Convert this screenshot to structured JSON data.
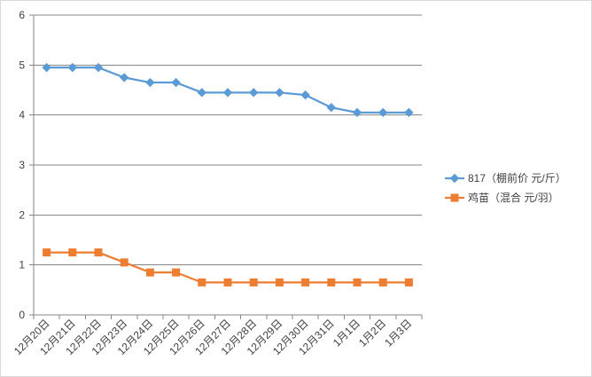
{
  "chart_data": {
    "type": "line",
    "categories": [
      "12月20日",
      "12月21日",
      "12月22日",
      "12月23日",
      "12月24日",
      "12月25日",
      "12月26日",
      "12月27日",
      "12月28日",
      "12月29日",
      "12月30日",
      "12月31日",
      "1月1日",
      "1月2日",
      "1月3日"
    ],
    "series": [
      {
        "name": "817（棚前价 元/斤）",
        "color": "#5b9bd5",
        "marker": "diamond",
        "values": [
          4.95,
          4.95,
          4.95,
          4.75,
          4.65,
          4.65,
          4.45,
          4.45,
          4.45,
          4.45,
          4.4,
          4.15,
          4.05,
          4.05,
          4.05
        ]
      },
      {
        "name": "鸡苗（混合 元/羽）",
        "color": "#ed7d31",
        "marker": "square",
        "values": [
          1.25,
          1.25,
          1.25,
          1.05,
          0.85,
          0.85,
          0.65,
          0.65,
          0.65,
          0.65,
          0.65,
          0.65,
          0.65,
          0.65,
          0.65
        ]
      }
    ],
    "yticks": [
      "0",
      "1",
      "2",
      "3",
      "4",
      "5",
      "6"
    ],
    "ylim": [
      0,
      6
    ],
    "grid": true,
    "legend": "right",
    "gridline_color": "#868686",
    "axis_color": "#868686",
    "text_color": "#404040"
  }
}
